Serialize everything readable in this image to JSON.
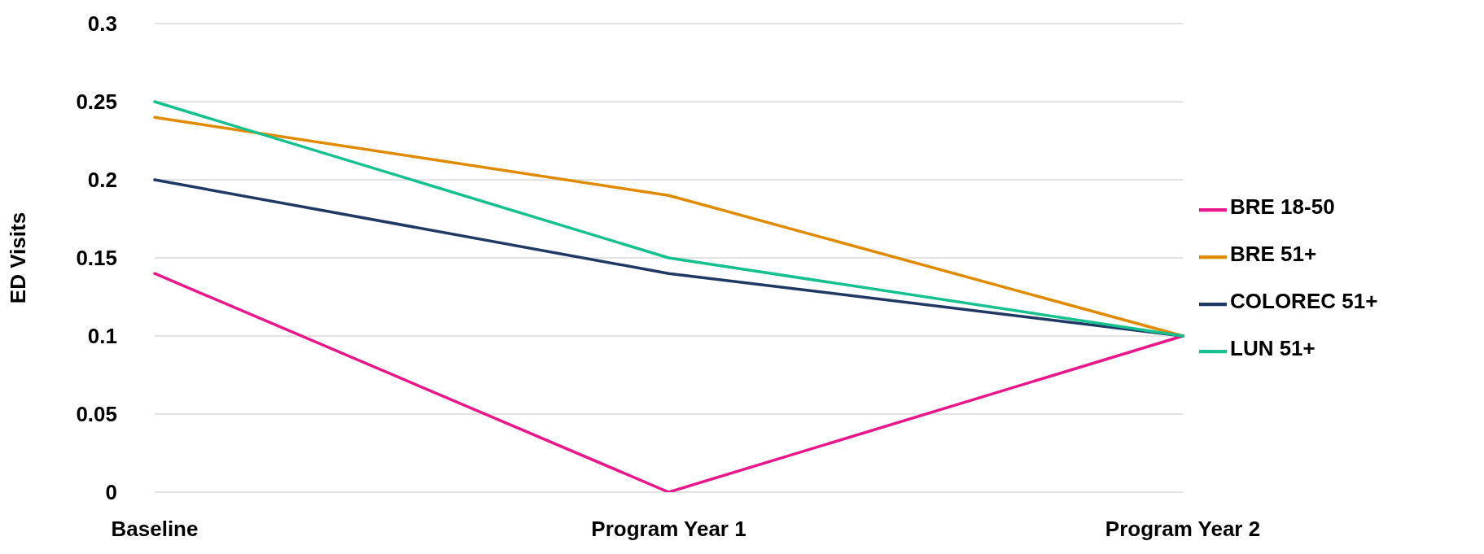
{
  "chart_data": {
    "type": "line",
    "ylabel": "ED Visits",
    "categories": [
      "Baseline",
      "Program Year 1",
      "Program Year 2"
    ],
    "series": [
      {
        "name": "BRE 18-50",
        "color": "#e8178c",
        "values": [
          0.14,
          0,
          0.1
        ]
      },
      {
        "name": "BRE 51+",
        "color": "#e08a00",
        "values": [
          0.24,
          0.19,
          0.1
        ]
      },
      {
        "name": "COLOREC 51+",
        "color": "#1f3864",
        "values": [
          0.2,
          0.14,
          0.1
        ]
      },
      {
        "name": "LUN 51+",
        "color": "#17c08f",
        "values": [
          0.25,
          0.15,
          0.1
        ]
      }
    ],
    "ylim": [
      0,
      0.3
    ],
    "yticks": [
      0,
      0.05,
      0.1,
      0.15,
      0.2,
      0.25,
      0.3
    ],
    "grid": "y",
    "legend": "right",
    "marker": "none",
    "line_style": "solid"
  }
}
